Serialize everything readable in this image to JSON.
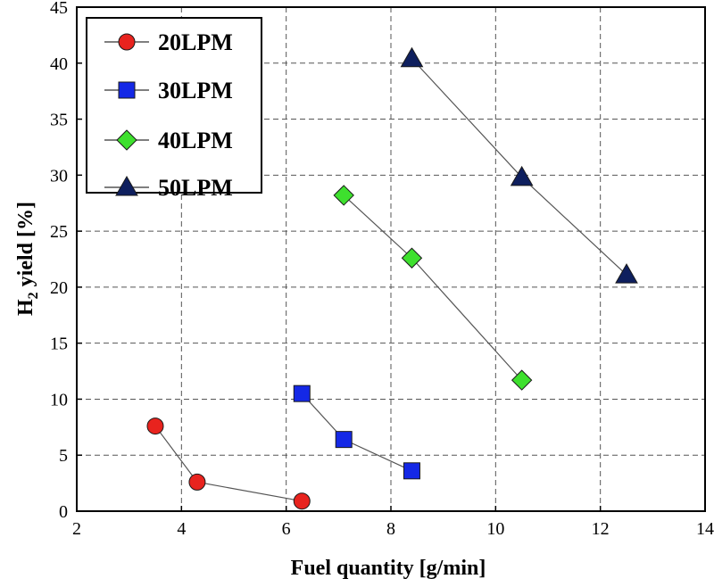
{
  "chart_data": {
    "type": "line",
    "xlabel": "Fuel quantity [g/min]",
    "ylabel_main": "H",
    "ylabel_sub": "2",
    "ylabel_rest": " yield [%]",
    "xlim": [
      2,
      14
    ],
    "ylim": [
      0,
      45
    ],
    "x_ticks": [
      "2",
      "4",
      "6",
      "8",
      "10",
      "12",
      "14"
    ],
    "y_ticks": [
      "0",
      "5",
      "10",
      "15",
      "20",
      "25",
      "30",
      "35",
      "40",
      "45"
    ],
    "grid": true,
    "legend_position": "top-left",
    "series": [
      {
        "name": "20LPM",
        "marker": "circle",
        "color": "#e8231e",
        "x": [
          3.5,
          4.3,
          6.3
        ],
        "y": [
          7.6,
          2.6,
          0.9
        ]
      },
      {
        "name": "30LPM",
        "marker": "square",
        "color": "#1428e6",
        "x": [
          6.3,
          7.1,
          8.4
        ],
        "y": [
          10.5,
          6.4,
          3.6
        ]
      },
      {
        "name": "40LPM",
        "marker": "diamond",
        "color": "#3ee02e",
        "x": [
          7.1,
          8.4,
          10.5
        ],
        "y": [
          28.2,
          22.6,
          11.7
        ]
      },
      {
        "name": "50LPM",
        "marker": "triangle",
        "color": "#0e1f5e",
        "x": [
          8.4,
          10.5,
          12.5
        ],
        "y": [
          40.4,
          29.8,
          21.1
        ]
      }
    ]
  }
}
